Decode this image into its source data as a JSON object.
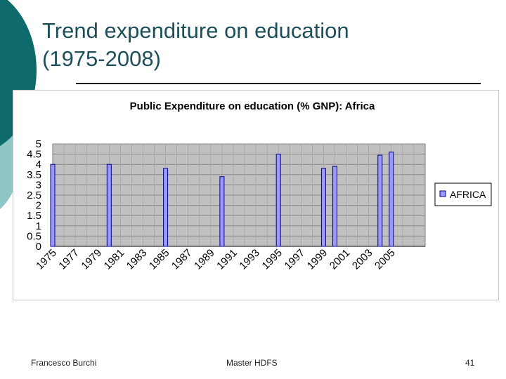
{
  "slide": {
    "title_line1": "Trend expenditure on education",
    "title_line2": "(1975-2008)"
  },
  "footer": {
    "author": "Francesco Burchi",
    "course": "Master HDFS",
    "page_number": "41"
  },
  "colors": {
    "title": "#1d4f5a",
    "plot_area": "#c0c0c0",
    "bar_fill": "#9999ff",
    "bar_stroke": "#000080",
    "decoration_dark": "#0f6b6b",
    "decoration_light": "#8fc7c7"
  },
  "chart_data": {
    "type": "bar",
    "title": "Public Expenditure on education (% GNP): Africa",
    "ylim": [
      0,
      5
    ],
    "yticks": [
      "0",
      "0.5",
      "1",
      "1.5",
      "2",
      "2.5",
      "3",
      "3.5",
      "4",
      "4.5",
      "5"
    ],
    "x_tick_labels": [
      "1975",
      "1977",
      "1979",
      "1981",
      "1983",
      "1985",
      "1987",
      "1989",
      "1991",
      "1993",
      "1995",
      "1997",
      "1999",
      "2001",
      "2003",
      "2005"
    ],
    "grid": true,
    "legend_position": "right",
    "series": [
      {
        "name": "AFRICA",
        "points": [
          {
            "year": 1975,
            "value": 4.0
          },
          {
            "year": 1980,
            "value": 4.0
          },
          {
            "year": 1985,
            "value": 3.8
          },
          {
            "year": 1990,
            "value": 3.4
          },
          {
            "year": 1995,
            "value": 4.5
          },
          {
            "year": 1999,
            "value": 3.8
          },
          {
            "year": 2000,
            "value": 3.9
          },
          {
            "year": 2004,
            "value": 4.45
          },
          {
            "year": 2005,
            "value": 4.6
          }
        ]
      }
    ]
  }
}
